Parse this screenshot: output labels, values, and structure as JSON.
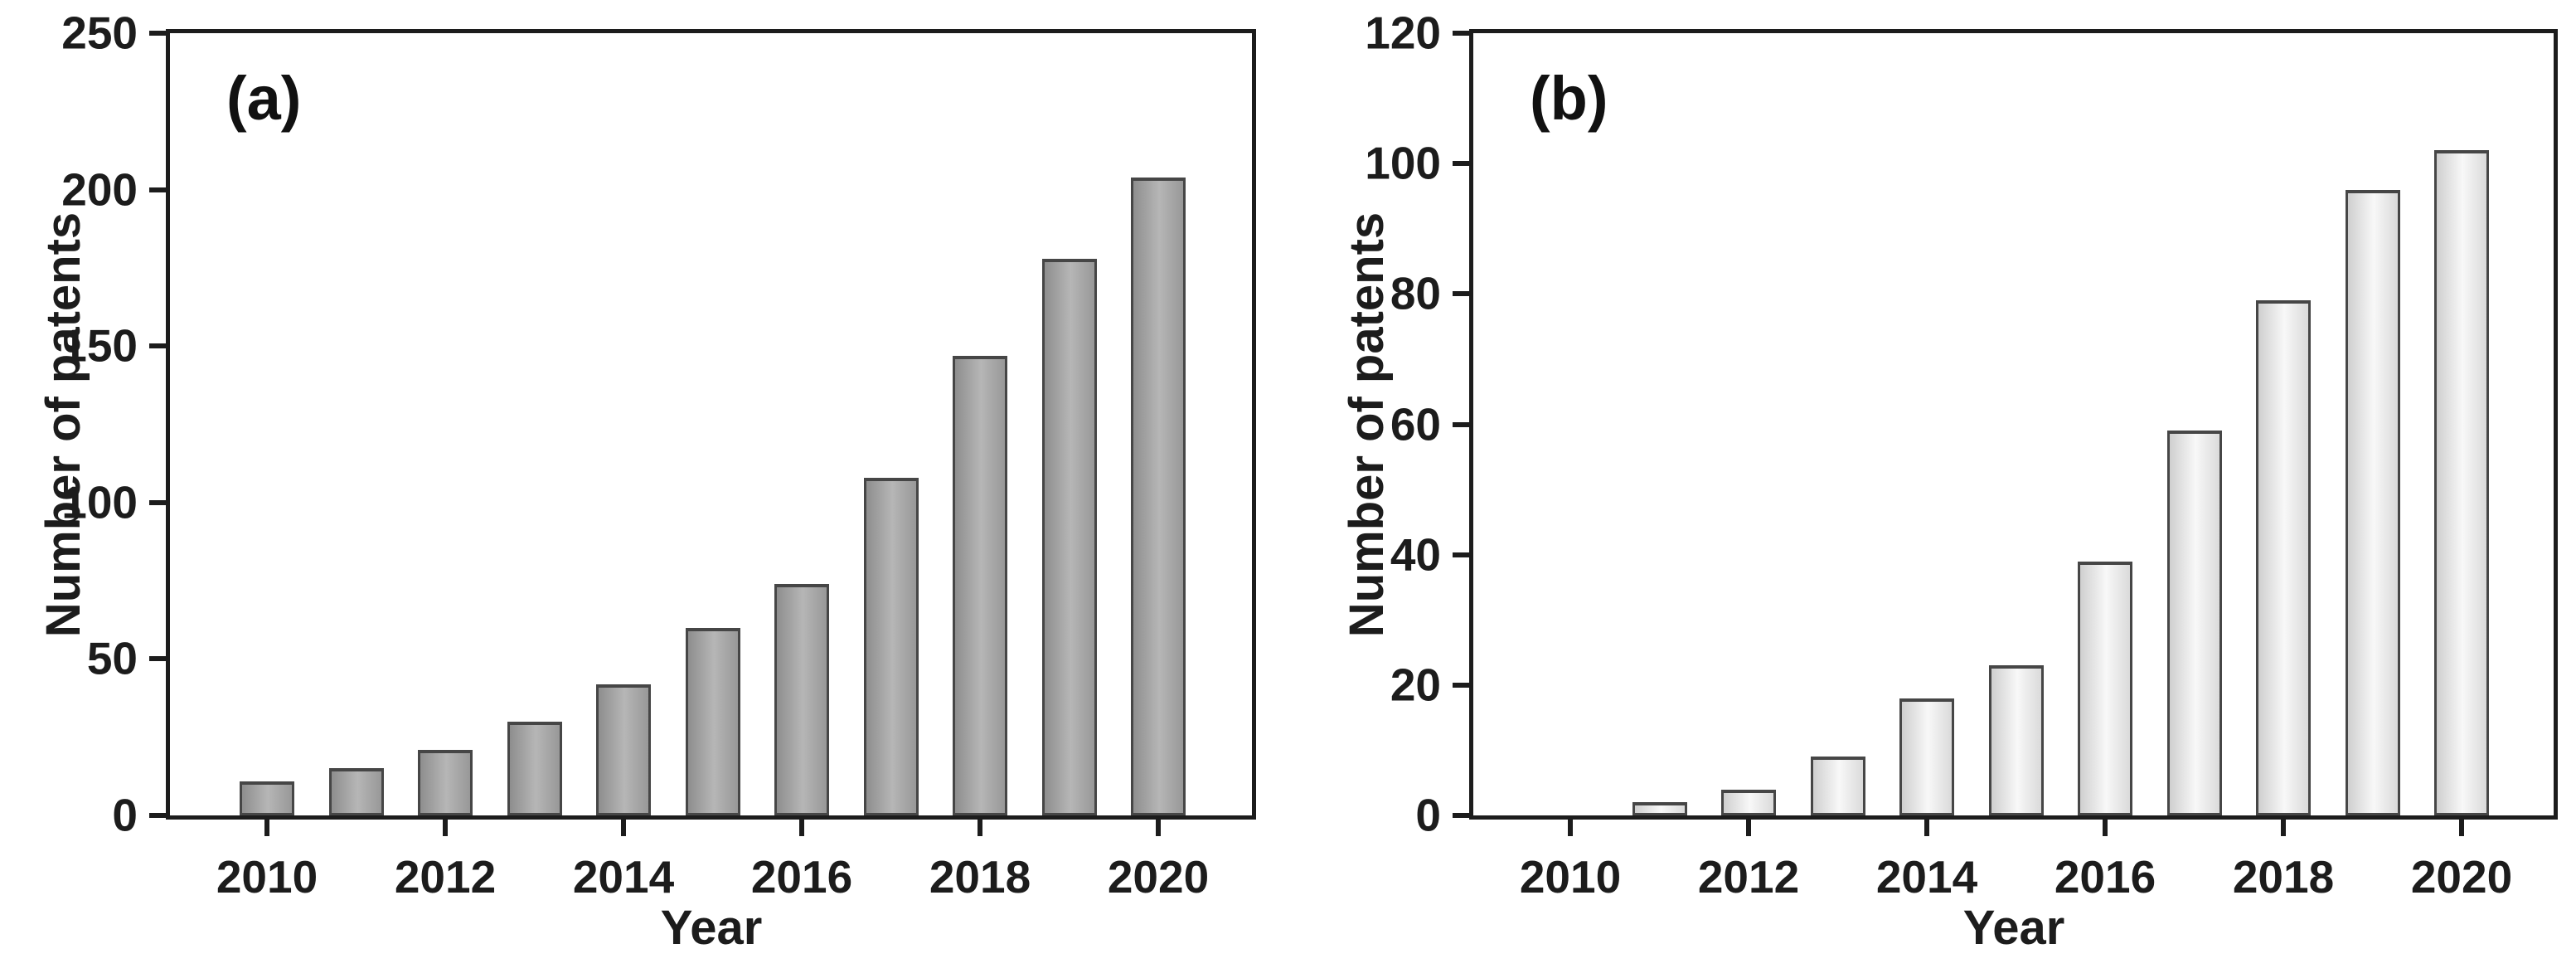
{
  "figure": {
    "background": "#ffffff",
    "axis_color": "#1c1c1c",
    "text_color": "#1c1c1c"
  },
  "chart_data": [
    {
      "type": "bar",
      "panel_label": "(a)",
      "title": "",
      "xlabel": "Year",
      "ylabel": "Number of patents",
      "categories": [
        "2010",
        "2011",
        "2012",
        "2013",
        "2014",
        "2015",
        "2016",
        "2017",
        "2018",
        "2019",
        "2020"
      ],
      "values": [
        11,
        15,
        21,
        30,
        42,
        60,
        74,
        108,
        147,
        178,
        204
      ],
      "ylim": [
        0,
        250
      ],
      "ytick_step": 50,
      "yticks": [
        0,
        50,
        100,
        150,
        200,
        250
      ],
      "xtick_labels": [
        "2010",
        "2012",
        "2014",
        "2016",
        "2018",
        "2020"
      ],
      "grid": false,
      "legend": null,
      "bar_fill_edge": "#8e8e8e",
      "bar_fill_center": "#b6b6b6",
      "bar_border": "#464646"
    },
    {
      "type": "bar",
      "panel_label": "(b)",
      "title": "",
      "xlabel": "Year",
      "ylabel": "Number of patents",
      "categories": [
        "2010",
        "2011",
        "2012",
        "2013",
        "2014",
        "2015",
        "2016",
        "2017",
        "2018",
        "2019",
        "2020"
      ],
      "values": [
        0,
        2,
        4,
        9,
        18,
        23,
        39,
        59,
        79,
        96,
        102
      ],
      "ylim": [
        0,
        120
      ],
      "ytick_step": 20,
      "yticks": [
        0,
        20,
        40,
        60,
        80,
        100,
        120
      ],
      "xtick_labels": [
        "2010",
        "2012",
        "2014",
        "2016",
        "2018",
        "2020"
      ],
      "grid": false,
      "legend": null,
      "bar_fill_edge": "#cfcfcf",
      "bar_fill_center": "#f8f8f8",
      "bar_border": "#464646"
    }
  ]
}
